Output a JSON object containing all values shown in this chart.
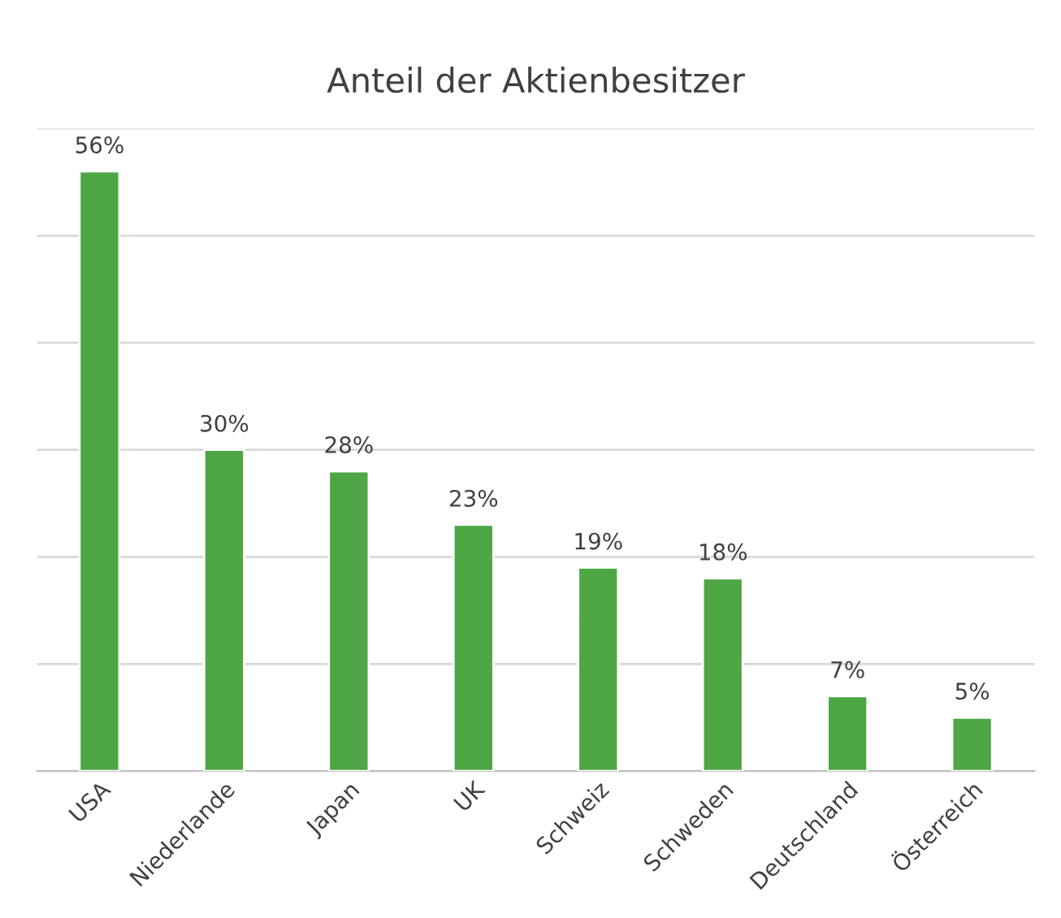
{
  "chart_data": {
    "type": "bar",
    "title": "Anteil der Aktienbesitzer",
    "categories": [
      "USA",
      "Niederlande",
      "Japan",
      "UK",
      "Schweiz",
      "Schweden",
      "Deutschland",
      "Österreich"
    ],
    "values": [
      56,
      30,
      28,
      23,
      19,
      18,
      7,
      5
    ],
    "value_labels": [
      "56%",
      "30%",
      "28%",
      "23%",
      "19%",
      "18%",
      "7%",
      "5%"
    ],
    "color": "#4ea645",
    "ylim": [
      0,
      60
    ],
    "yticks": [
      {
        "value": 0,
        "label": null
      },
      {
        "value": 10,
        "label": null
      },
      {
        "value": 20,
        "label": null
      },
      {
        "value": 30,
        "label": null
      },
      {
        "value": 40,
        "label": null
      },
      {
        "value": 50,
        "label": null
      },
      {
        "value": 60,
        "label": null
      }
    ],
    "grid": "y",
    "tick_labels": "x"
  }
}
